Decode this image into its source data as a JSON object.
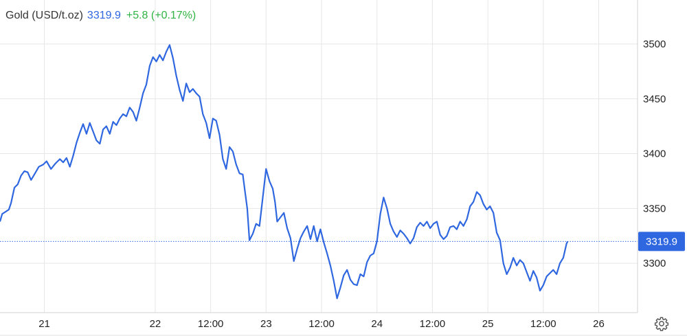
{
  "header": {
    "symbol": "Gold (USD/t.oz)",
    "price": "3319.9",
    "change": "+5.8 (+0.17%)"
  },
  "colors": {
    "line": "#2f67e0",
    "last_badge": "#2f67e0",
    "change_up": "#2fb344",
    "grid": "#e6e6e6"
  },
  "settings_icon": "gear-icon",
  "chart_data": {
    "type": "line",
    "title": "",
    "xlabel": "",
    "ylabel": "",
    "ylim": [
      3255,
      3515
    ],
    "xlim": [
      20.6,
      26.35
    ],
    "y_ticks": [
      3300,
      3350,
      3400,
      3450,
      3500
    ],
    "x_ticks": [
      {
        "pos": 21.0,
        "label": "21"
      },
      {
        "pos": 22.0,
        "label": "22"
      },
      {
        "pos": 22.5,
        "label": "12:00"
      },
      {
        "pos": 23.0,
        "label": "23"
      },
      {
        "pos": 23.5,
        "label": "12:00"
      },
      {
        "pos": 24.0,
        "label": "24"
      },
      {
        "pos": 24.5,
        "label": "12:00"
      },
      {
        "pos": 25.0,
        "label": "25"
      },
      {
        "pos": 25.5,
        "label": "12:00"
      },
      {
        "pos": 26.0,
        "label": "26"
      }
    ],
    "last_value": 3319.9,
    "last_label": "3319.9",
    "grid": true,
    "series": [
      {
        "values": [
          [
            20.6,
            3338
          ],
          [
            20.62,
            3345
          ],
          [
            20.65,
            3347
          ],
          [
            20.68,
            3349
          ],
          [
            20.7,
            3355
          ],
          [
            20.73,
            3369
          ],
          [
            20.76,
            3372
          ],
          [
            20.79,
            3380
          ],
          [
            20.82,
            3384
          ],
          [
            20.85,
            3383
          ],
          [
            20.88,
            3376
          ],
          [
            20.91,
            3381
          ],
          [
            20.95,
            3388
          ],
          [
            20.99,
            3390
          ],
          [
            21.02,
            3393
          ],
          [
            21.06,
            3386
          ],
          [
            21.1,
            3391
          ],
          [
            21.14,
            3395
          ],
          [
            21.17,
            3392
          ],
          [
            21.2,
            3396
          ],
          [
            21.23,
            3388
          ],
          [
            21.26,
            3398
          ],
          [
            21.29,
            3410
          ],
          [
            21.32,
            3419
          ],
          [
            21.35,
            3427
          ],
          [
            21.38,
            3418
          ],
          [
            21.41,
            3428
          ],
          [
            21.44,
            3420
          ],
          [
            21.47,
            3412
          ],
          [
            21.5,
            3409
          ],
          [
            21.53,
            3422
          ],
          [
            21.56,
            3425
          ],
          [
            21.59,
            3418
          ],
          [
            21.62,
            3429
          ],
          [
            21.65,
            3426
          ],
          [
            21.68,
            3432
          ],
          [
            21.71,
            3436
          ],
          [
            21.74,
            3434
          ],
          [
            21.77,
            3442
          ],
          [
            21.8,
            3438
          ],
          [
            21.83,
            3430
          ],
          [
            21.86,
            3442
          ],
          [
            21.89,
            3455
          ],
          [
            21.92,
            3463
          ],
          [
            21.95,
            3480
          ],
          [
            21.98,
            3488
          ],
          [
            22.01,
            3484
          ],
          [
            22.04,
            3490
          ],
          [
            22.07,
            3485
          ],
          [
            22.1,
            3493
          ],
          [
            22.13,
            3499
          ],
          [
            22.16,
            3487
          ],
          [
            22.19,
            3471
          ],
          [
            22.22,
            3458
          ],
          [
            22.25,
            3448
          ],
          [
            22.28,
            3464
          ],
          [
            22.31,
            3456
          ],
          [
            22.34,
            3459
          ],
          [
            22.37,
            3455
          ],
          [
            22.4,
            3452
          ],
          [
            22.43,
            3436
          ],
          [
            22.46,
            3428
          ],
          [
            22.49,
            3414
          ],
          [
            22.52,
            3432
          ],
          [
            22.55,
            3430
          ],
          [
            22.58,
            3417
          ],
          [
            22.61,
            3395
          ],
          [
            22.64,
            3386
          ],
          [
            22.67,
            3406
          ],
          [
            22.7,
            3402
          ],
          [
            22.73,
            3390
          ],
          [
            22.76,
            3382
          ],
          [
            22.79,
            3381
          ],
          [
            22.81,
            3365
          ],
          [
            22.83,
            3350
          ],
          [
            22.85,
            3321
          ],
          [
            22.88,
            3327
          ],
          [
            22.91,
            3336
          ],
          [
            22.94,
            3334
          ],
          [
            22.97,
            3360
          ],
          [
            23.0,
            3386
          ],
          [
            23.03,
            3375
          ],
          [
            23.06,
            3368
          ],
          [
            23.08,
            3356
          ],
          [
            23.1,
            3338
          ],
          [
            23.13,
            3342
          ],
          [
            23.16,
            3346
          ],
          [
            23.19,
            3332
          ],
          [
            23.22,
            3323
          ],
          [
            23.25,
            3302
          ],
          [
            23.28,
            3313
          ],
          [
            23.31,
            3323
          ],
          [
            23.34,
            3329
          ],
          [
            23.37,
            3334
          ],
          [
            23.4,
            3322
          ],
          [
            23.43,
            3334
          ],
          [
            23.46,
            3320
          ],
          [
            23.49,
            3331
          ],
          [
            23.52,
            3319
          ],
          [
            23.55,
            3309
          ],
          [
            23.58,
            3298
          ],
          [
            23.61,
            3284
          ],
          [
            23.64,
            3268
          ],
          [
            23.67,
            3278
          ],
          [
            23.7,
            3289
          ],
          [
            23.73,
            3294
          ],
          [
            23.76,
            3285
          ],
          [
            23.79,
            3281
          ],
          [
            23.82,
            3280
          ],
          [
            23.85,
            3290
          ],
          [
            23.88,
            3288
          ],
          [
            23.91,
            3301
          ],
          [
            23.94,
            3307
          ],
          [
            23.97,
            3309
          ],
          [
            24.0,
            3320
          ],
          [
            24.03,
            3345
          ],
          [
            24.06,
            3360
          ],
          [
            24.09,
            3350
          ],
          [
            24.12,
            3336
          ],
          [
            24.15,
            3329
          ],
          [
            24.18,
            3324
          ],
          [
            24.21,
            3330
          ],
          [
            24.24,
            3327
          ],
          [
            24.27,
            3323
          ],
          [
            24.3,
            3318
          ],
          [
            24.33,
            3323
          ],
          [
            24.36,
            3333
          ],
          [
            24.39,
            3337
          ],
          [
            24.42,
            3334
          ],
          [
            24.45,
            3338
          ],
          [
            24.48,
            3332
          ],
          [
            24.51,
            3336
          ],
          [
            24.54,
            3338
          ],
          [
            24.57,
            3326
          ],
          [
            24.6,
            3322
          ],
          [
            24.63,
            3325
          ],
          [
            24.66,
            3333
          ],
          [
            24.69,
            3334
          ],
          [
            24.72,
            3331
          ],
          [
            24.75,
            3338
          ],
          [
            24.78,
            3334
          ],
          [
            24.81,
            3340
          ],
          [
            24.84,
            3352
          ],
          [
            24.87,
            3356
          ],
          [
            24.9,
            3365
          ],
          [
            24.93,
            3362
          ],
          [
            24.96,
            3354
          ],
          [
            24.99,
            3349
          ],
          [
            25.02,
            3352
          ],
          [
            25.05,
            3346
          ],
          [
            25.08,
            3328
          ],
          [
            25.11,
            3321
          ],
          [
            25.14,
            3300
          ],
          [
            25.17,
            3290
          ],
          [
            25.2,
            3296
          ],
          [
            25.23,
            3305
          ],
          [
            25.26,
            3298
          ],
          [
            25.29,
            3303
          ],
          [
            25.32,
            3300
          ],
          [
            25.35,
            3292
          ],
          [
            25.38,
            3284
          ],
          [
            25.41,
            3293
          ],
          [
            25.44,
            3287
          ],
          [
            25.47,
            3275
          ],
          [
            25.5,
            3280
          ],
          [
            25.53,
            3288
          ],
          [
            25.56,
            3291
          ],
          [
            25.59,
            3294
          ],
          [
            25.62,
            3290
          ],
          [
            25.65,
            3300
          ],
          [
            25.68,
            3305
          ],
          [
            25.71,
            3318
          ],
          [
            25.72,
            3319.9
          ]
        ]
      }
    ]
  }
}
